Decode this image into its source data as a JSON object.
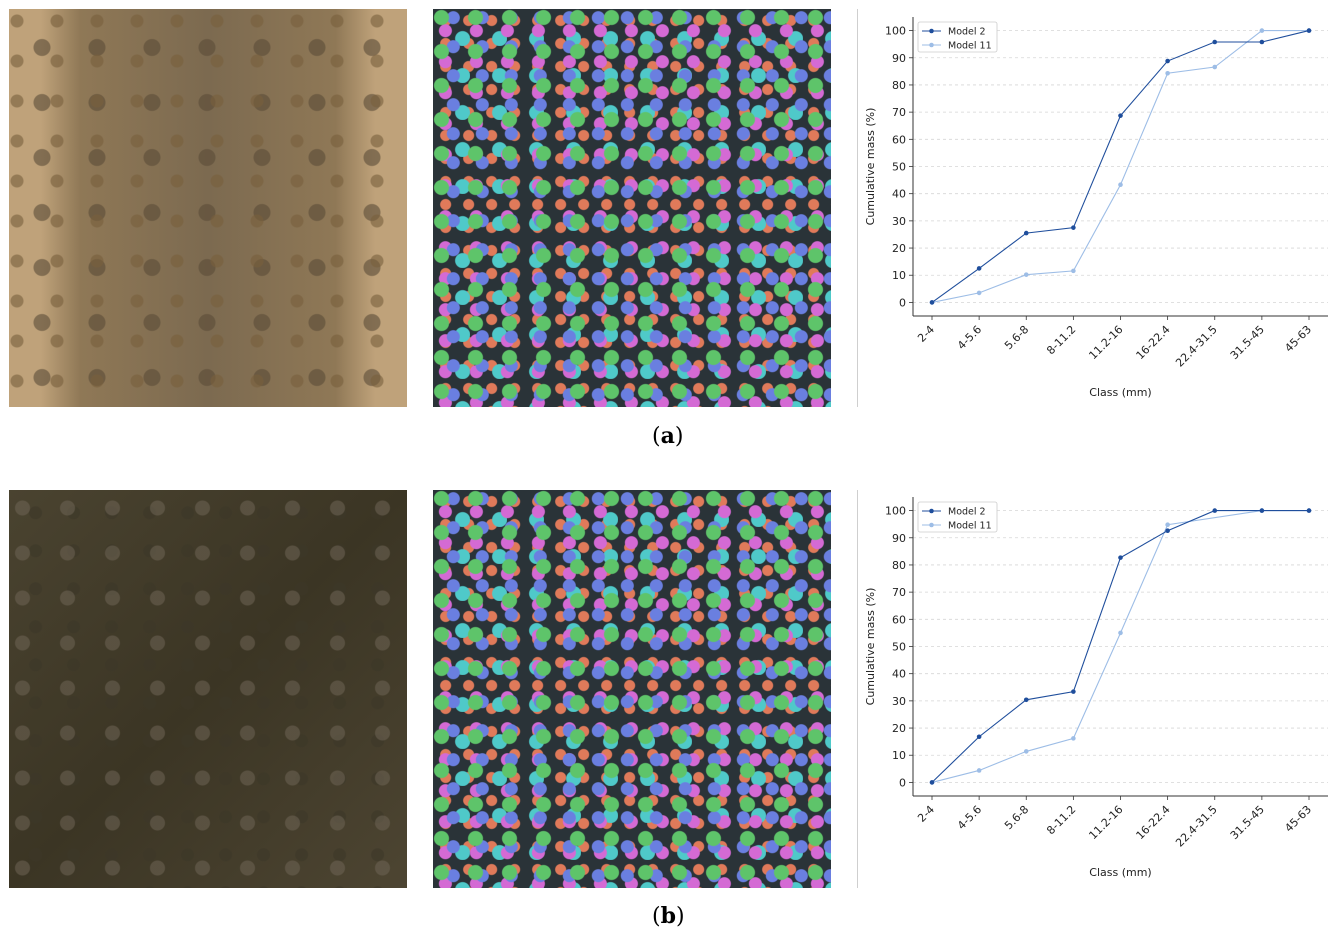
{
  "figure": {
    "panels": [
      {
        "label": "(a)",
        "label_letter": "a",
        "images": [
          {
            "name": "raw-gravel-photo",
            "description": "Aerial photo of light brown gravel strip"
          },
          {
            "name": "segmentation-overlay",
            "description": "Instance segmentation with colored stone masks"
          }
        ]
      },
      {
        "label": "(b)",
        "label_letter": "b",
        "images": [
          {
            "name": "raw-gravel-photo",
            "description": "Aerial photo of dark soil with stones"
          },
          {
            "name": "segmentation-overlay",
            "description": "Instance segmentation with colored stone masks"
          }
        ]
      }
    ]
  },
  "chart_data": [
    {
      "type": "line",
      "title": "",
      "xlabel": "Class (mm)",
      "ylabel": "Cumulative mass (%)",
      "ylim": [
        -5,
        105
      ],
      "yticks": [
        0,
        10,
        20,
        30,
        40,
        50,
        60,
        70,
        80,
        90,
        100
      ],
      "grid": "horizontal dashed",
      "legend_position": "upper left",
      "categories": [
        "2-4",
        "4-5.6",
        "5.6-8",
        "8-11.2",
        "11.2-16",
        "16-22.4",
        "22.4-31.5",
        "31.5-45",
        "45-63"
      ],
      "series": [
        {
          "name": "Model 2",
          "color": "#1f4e9c",
          "values": [
            0,
            12.5,
            25.5,
            27.5,
            68.7,
            88.8,
            95.8,
            95.8,
            100
          ]
        },
        {
          "name": "Model 11",
          "color": "#9dbde6",
          "values": [
            0,
            3.5,
            10.2,
            11.6,
            43.3,
            84.3,
            86.6,
            100,
            100
          ]
        }
      ]
    },
    {
      "type": "line",
      "title": "",
      "xlabel": "Class (mm)",
      "ylabel": "Cumulative mass (%)",
      "ylim": [
        -5,
        105
      ],
      "yticks": [
        0,
        10,
        20,
        30,
        40,
        50,
        60,
        70,
        80,
        90,
        100
      ],
      "grid": "horizontal dashed",
      "legend_position": "upper left",
      "categories": [
        "2-4",
        "4-5.6",
        "5.6-8",
        "8-11.2",
        "11.2-16",
        "16-22.4",
        "22.4-31.5",
        "31.5-45",
        "45-63"
      ],
      "series": [
        {
          "name": "Model 2",
          "color": "#1f4e9c",
          "values": [
            0,
            16.8,
            30.4,
            33.4,
            82.7,
            92.6,
            100,
            100,
            100
          ]
        },
        {
          "name": "Model 11",
          "color": "#9dbde6",
          "values": [
            0,
            4.4,
            11.4,
            16.2,
            55.0,
            94.8,
            null,
            100,
            100
          ]
        }
      ]
    }
  ]
}
